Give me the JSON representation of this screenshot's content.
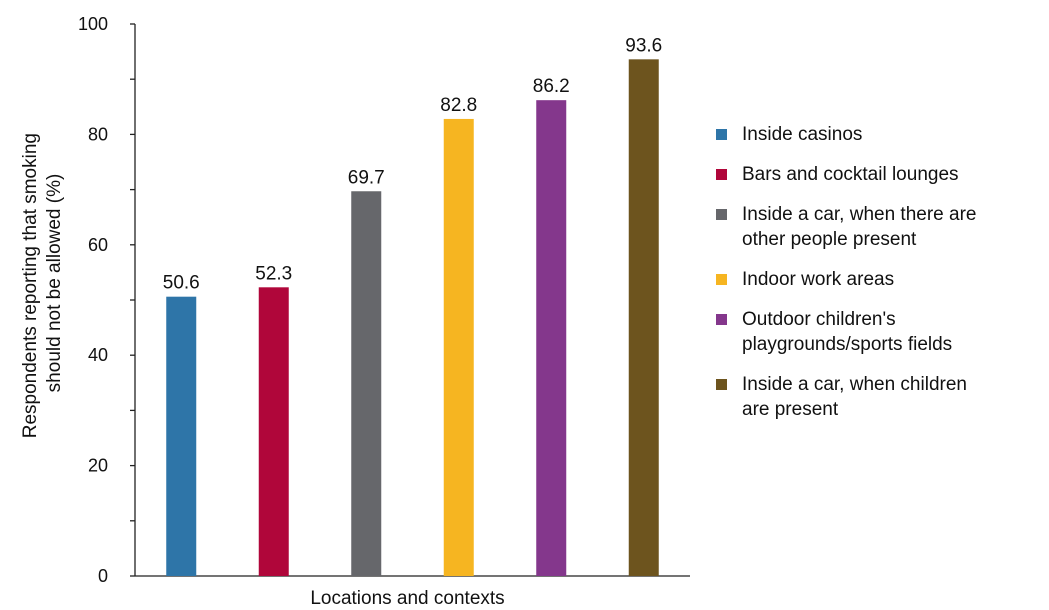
{
  "chart_data": {
    "type": "bar",
    "categories": [
      "Inside casinos",
      "Bars and cocktail lounges",
      "Inside a car, when there are other people present",
      "Indoor work areas",
      "Outdoor children's playgrounds/sports fields",
      "Inside a car, when children are present"
    ],
    "values": [
      50.6,
      52.3,
      69.7,
      82.8,
      86.2,
      93.6
    ],
    "value_labels": [
      "50.6",
      "52.3",
      "69.7",
      "82.8",
      "86.2",
      "93.6"
    ],
    "colors": [
      "#2e75a8",
      "#b0063a",
      "#66676b",
      "#f6b521",
      "#84378c",
      "#6d541e"
    ],
    "xlabel": "Locations and contexts",
    "ylabel_lines": [
      "Respondents reporting that smoking",
      "should not be allowed (%)"
    ],
    "ylim": [
      0,
      100
    ],
    "yticks": [
      0,
      20,
      40,
      60,
      80,
      100
    ],
    "ytick_labels": [
      "0",
      "20",
      "40",
      "60",
      "80",
      "100"
    ],
    "grid": false,
    "legend_position": "right"
  },
  "legend": {
    "items": [
      {
        "lines": [
          "Inside casinos"
        ]
      },
      {
        "lines": [
          "Bars and cocktail lounges"
        ]
      },
      {
        "lines": [
          "Inside a car, when there are",
          "other people present"
        ]
      },
      {
        "lines": [
          "Indoor work areas"
        ]
      },
      {
        "lines": [
          "Outdoor children's",
          "playgrounds/sports fields"
        ]
      },
      {
        "lines": [
          "Inside a car, when children",
          "are present"
        ]
      }
    ]
  }
}
